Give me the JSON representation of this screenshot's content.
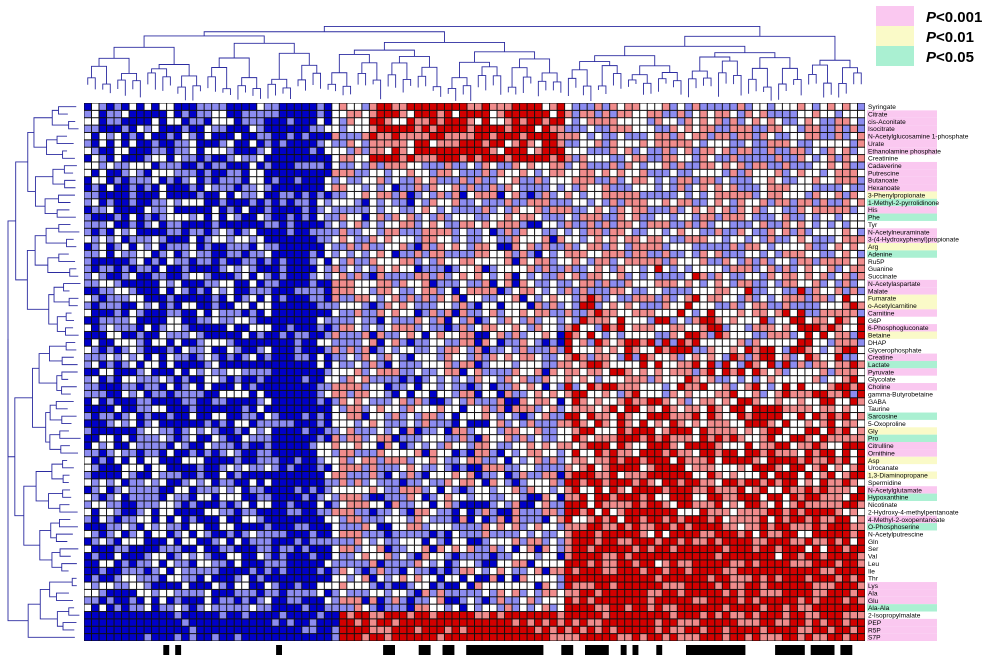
{
  "chart_data": {
    "type": "heatmap",
    "title": "",
    "xlabel": "",
    "ylabel": "",
    "n_samples": 104,
    "colors": {
      "low": "#0000c8",
      "mid_low": "#8c8cf0",
      "neutral": "#ffffff",
      "mid_high": "#f08c8c",
      "high": "#d20000",
      "grid": "#111111",
      "dendrogram": "#2b2ba0",
      "group_bar": "#000000"
    },
    "legend": {
      "placement": "top-right",
      "items": [
        {
          "prefix": "P",
          "text": "<0.001",
          "color": "#fac8f0"
        },
        {
          "prefix": "P",
          "text": "<0.01",
          "color": "#fafac8"
        },
        {
          "prefix": "P",
          "text": "<0.05",
          "color": "#aaf0d2"
        }
      ]
    },
    "rows": [
      {
        "name": "Syringate",
        "sig": ""
      },
      {
        "name": "Citrate",
        "sig": "p001"
      },
      {
        "name": "cis-Aconitate",
        "sig": "p001"
      },
      {
        "name": "Isocitrate",
        "sig": "p001"
      },
      {
        "name": "N-Acetylglucosamine 1-phosphate",
        "sig": "p001"
      },
      {
        "name": "Urate",
        "sig": "p001"
      },
      {
        "name": "Ethanolamine phosphate",
        "sig": "p001"
      },
      {
        "name": "Creatinine",
        "sig": ""
      },
      {
        "name": "Cadaverine",
        "sig": "p001"
      },
      {
        "name": "Putrescine",
        "sig": "p001"
      },
      {
        "name": "Butanoate",
        "sig": "p001"
      },
      {
        "name": "Hexanoate",
        "sig": "p001"
      },
      {
        "name": "3-Phenylpropionate",
        "sig": "p01"
      },
      {
        "name": "1-Methyl-2-pyrrolidinone",
        "sig": "p05"
      },
      {
        "name": "His",
        "sig": "p001"
      },
      {
        "name": "Phe",
        "sig": "p05"
      },
      {
        "name": "Tyr",
        "sig": ""
      },
      {
        "name": "N-Acetylneuraminate",
        "sig": "p001"
      },
      {
        "name": "3-(4-Hydroxyphenyl)propionate",
        "sig": "p001"
      },
      {
        "name": "Arg",
        "sig": "p01"
      },
      {
        "name": "Adenine",
        "sig": "p05"
      },
      {
        "name": "Ru5P",
        "sig": ""
      },
      {
        "name": "Guanine",
        "sig": ""
      },
      {
        "name": "Succinate",
        "sig": ""
      },
      {
        "name": "N-Acetylaspartate",
        "sig": "p001"
      },
      {
        "name": "Malate",
        "sig": "p001"
      },
      {
        "name": "Fumarate",
        "sig": "p01"
      },
      {
        "name": "o-Acetylcarnitine",
        "sig": "p01"
      },
      {
        "name": "Carnitine",
        "sig": "p001"
      },
      {
        "name": "G6P",
        "sig": ""
      },
      {
        "name": "6-Phosphogluconate",
        "sig": "p001"
      },
      {
        "name": "Betaine",
        "sig": "p01"
      },
      {
        "name": "DHAP",
        "sig": ""
      },
      {
        "name": "Glycerophosphate",
        "sig": ""
      },
      {
        "name": "Creatine",
        "sig": "p001"
      },
      {
        "name": "Lactate",
        "sig": "p05"
      },
      {
        "name": "Pyruvate",
        "sig": "p001"
      },
      {
        "name": "Glycolate",
        "sig": ""
      },
      {
        "name": "Choline",
        "sig": "p001"
      },
      {
        "name": "gamma-Butyrobetaine",
        "sig": ""
      },
      {
        "name": "GABA",
        "sig": ""
      },
      {
        "name": "Taurine",
        "sig": ""
      },
      {
        "name": "Sarcosine",
        "sig": "p05"
      },
      {
        "name": "5-Oxoproline",
        "sig": ""
      },
      {
        "name": "Gly",
        "sig": "p01"
      },
      {
        "name": "Pro",
        "sig": "p05"
      },
      {
        "name": "Citrulline",
        "sig": "p001"
      },
      {
        "name": "Ornithine",
        "sig": "p001"
      },
      {
        "name": "Asp",
        "sig": "p01"
      },
      {
        "name": "Urocanate",
        "sig": ""
      },
      {
        "name": "1,3-Diaminopropane",
        "sig": "p01"
      },
      {
        "name": "Spermidine",
        "sig": ""
      },
      {
        "name": "N-Acetylglutamate",
        "sig": "p001"
      },
      {
        "name": "Hypoxanthine",
        "sig": "p05"
      },
      {
        "name": "Nicotinate",
        "sig": ""
      },
      {
        "name": "2-Hydroxy-4-methylpentanoate",
        "sig": ""
      },
      {
        "name": "4-Methyl-2-oxopentanoate",
        "sig": "p001"
      },
      {
        "name": "O-Phosphoserine",
        "sig": "p05"
      },
      {
        "name": "N-Acetylputrescine",
        "sig": ""
      },
      {
        "name": "Gln",
        "sig": ""
      },
      {
        "name": "Ser",
        "sig": ""
      },
      {
        "name": "Val",
        "sig": ""
      },
      {
        "name": "Leu",
        "sig": ""
      },
      {
        "name": "Ile",
        "sig": ""
      },
      {
        "name": "Thr",
        "sig": ""
      },
      {
        "name": "Lys",
        "sig": "p001"
      },
      {
        "name": "Ala",
        "sig": "p001"
      },
      {
        "name": "Glu",
        "sig": "p001"
      },
      {
        "name": "Ala-Ala",
        "sig": "p05"
      },
      {
        "name": "2-Isopropylmalate",
        "sig": ""
      },
      {
        "name": "PEP",
        "sig": "p001"
      },
      {
        "name": "R5P",
        "sig": "p001"
      },
      {
        "name": "S7P",
        "sig": "p001"
      }
    ]
  }
}
